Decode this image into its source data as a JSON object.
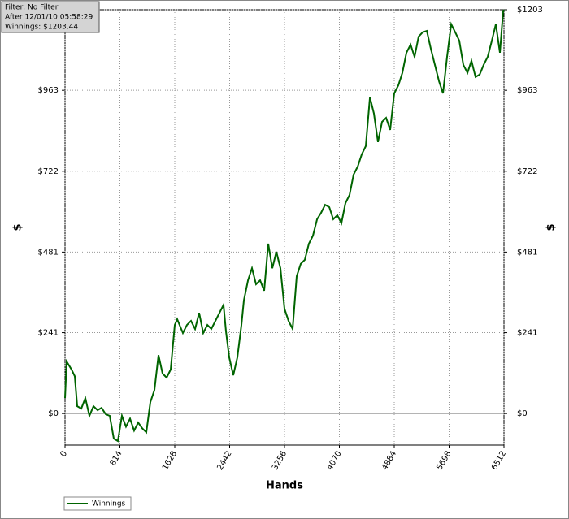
{
  "chart_data": {
    "type": "line",
    "filter_lines": [
      "Filter: No Filter",
      "After 12/01/10 05:58:29",
      "Winnings: $1203.44"
    ],
    "xlabel": "Hands",
    "ylabel": "$",
    "y2label": "$",
    "x": [
      0,
      24,
      96,
      145,
      181,
      241,
      302,
      362,
      422,
      482,
      543,
      603,
      663,
      724,
      784,
      844,
      905,
      965,
      1025,
      1085,
      1146,
      1206,
      1266,
      1327,
      1387,
      1447,
      1508,
      1568,
      1628,
      1664,
      1749,
      1809,
      1869,
      1930,
      1990,
      2050,
      2111,
      2171,
      2231,
      2291,
      2352,
      2388,
      2436,
      2496,
      2557,
      2617,
      2653,
      2714,
      2774,
      2834,
      2894,
      2955,
      3015,
      3075,
      3136,
      3196,
      3256,
      3316,
      3377,
      3437,
      3497,
      3558,
      3618,
      3678,
      3739,
      3799,
      3859,
      3920,
      3980,
      4040,
      4100,
      4161,
      4221,
      4281,
      4342,
      4402,
      4462,
      4523,
      4583,
      4643,
      4703,
      4764,
      4824,
      4884,
      4945,
      5005,
      5065,
      5126,
      5186,
      5246,
      5306,
      5367,
      5427,
      5487,
      5548,
      5608,
      5668,
      5729,
      5789,
      5849,
      5909,
      5970,
      6030,
      6090,
      6151,
      6211,
      6271,
      6332,
      6392,
      6452,
      6500,
      6512
    ],
    "series": [
      {
        "name": "Winnings",
        "color": "#006400",
        "values": [
          46,
          155,
          131,
          111,
          22,
          15,
          46,
          -7,
          22,
          10,
          17,
          -2,
          -7,
          -75,
          -82,
          -7,
          -39,
          -15,
          -51,
          -27,
          -44,
          -56,
          34,
          70,
          174,
          119,
          107,
          131,
          264,
          281,
          240,
          264,
          276,
          252,
          300,
          240,
          264,
          252,
          276,
          300,
          324,
          245,
          167,
          114,
          167,
          264,
          337,
          397,
          433,
          385,
          397,
          366,
          506,
          433,
          482,
          433,
          312,
          276,
          252,
          409,
          446,
          458,
          506,
          530,
          579,
          598,
          622,
          615,
          579,
          591,
          567,
          627,
          651,
          712,
          736,
          772,
          797,
          942,
          894,
          809,
          869,
          881,
          845,
          954,
          978,
          1015,
          1075,
          1099,
          1063,
          1123,
          1136,
          1140,
          1087,
          1039,
          990,
          954,
          1063,
          1160,
          1136,
          1111,
          1039,
          1015,
          1051,
          1003,
          1010,
          1039,
          1063,
          1111,
          1160,
          1075,
          1199,
          1203
        ]
      }
    ],
    "xlim": [
      0,
      6512
    ],
    "xticks": [
      0,
      814,
      1628,
      2442,
      3256,
      4070,
      4884,
      5698,
      6512
    ],
    "ylim": [
      -94,
      1203
    ],
    "yticks": [
      {
        "value": 0,
        "label": "$0"
      },
      {
        "value": 241,
        "label": "$241"
      },
      {
        "value": 481,
        "label": "$481"
      },
      {
        "value": 722,
        "label": "$722"
      },
      {
        "value": 963,
        "label": "$963"
      },
      {
        "value": 1203,
        "label": "$1203"
      }
    ],
    "grid": true
  }
}
